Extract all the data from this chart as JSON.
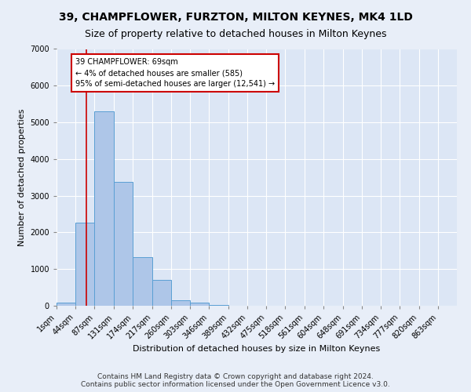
{
  "title": "39, CHAMPFLOWER, FURZTON, MILTON KEYNES, MK4 1LD",
  "subtitle": "Size of property relative to detached houses in Milton Keynes",
  "xlabel": "Distribution of detached houses by size in Milton Keynes",
  "ylabel": "Number of detached properties",
  "footer_line1": "Contains HM Land Registry data © Crown copyright and database right 2024.",
  "footer_line2": "Contains public sector information licensed under the Open Government Licence v3.0.",
  "annotation_line1": "39 CHAMPFLOWER: 69sqm",
  "annotation_line2": "← 4% of detached houses are smaller (585)",
  "annotation_line3": "95% of semi-detached houses are larger (12,541) →",
  "bar_color": "#aec6e8",
  "bar_edge_color": "#5a9fd4",
  "bar_left_edges": [
    1,
    44,
    87,
    131,
    174,
    217,
    260,
    303,
    346,
    389,
    432,
    475,
    518,
    561,
    604,
    648,
    691,
    734,
    777,
    820
  ],
  "bar_heights": [
    80,
    2270,
    5300,
    3380,
    1330,
    700,
    160,
    80,
    20,
    5,
    2,
    1,
    0,
    0,
    0,
    0,
    0,
    0,
    0,
    0
  ],
  "bin_width": 43,
  "property_size": 69,
  "red_line_color": "#cc0000",
  "annotation_box_color": "#ffffff",
  "annotation_box_edge_color": "#cc0000",
  "ylim": [
    0,
    7000
  ],
  "yticks": [
    0,
    1000,
    2000,
    3000,
    4000,
    5000,
    6000,
    7000
  ],
  "xtick_labels": [
    "1sqm",
    "44sqm",
    "87sqm",
    "131sqm",
    "174sqm",
    "217sqm",
    "260sqm",
    "303sqm",
    "346sqm",
    "389sqm",
    "432sqm",
    "475sqm",
    "518sqm",
    "561sqm",
    "604sqm",
    "648sqm",
    "691sqm",
    "734sqm",
    "777sqm",
    "820sqm",
    "863sqm"
  ],
  "background_color": "#e8eef8",
  "plot_bg_color": "#dce6f5",
  "grid_color": "#ffffff",
  "title_fontsize": 10,
  "subtitle_fontsize": 9,
  "axis_label_fontsize": 8,
  "tick_fontsize": 7,
  "footer_fontsize": 6.5,
  "annotation_fontsize": 7
}
